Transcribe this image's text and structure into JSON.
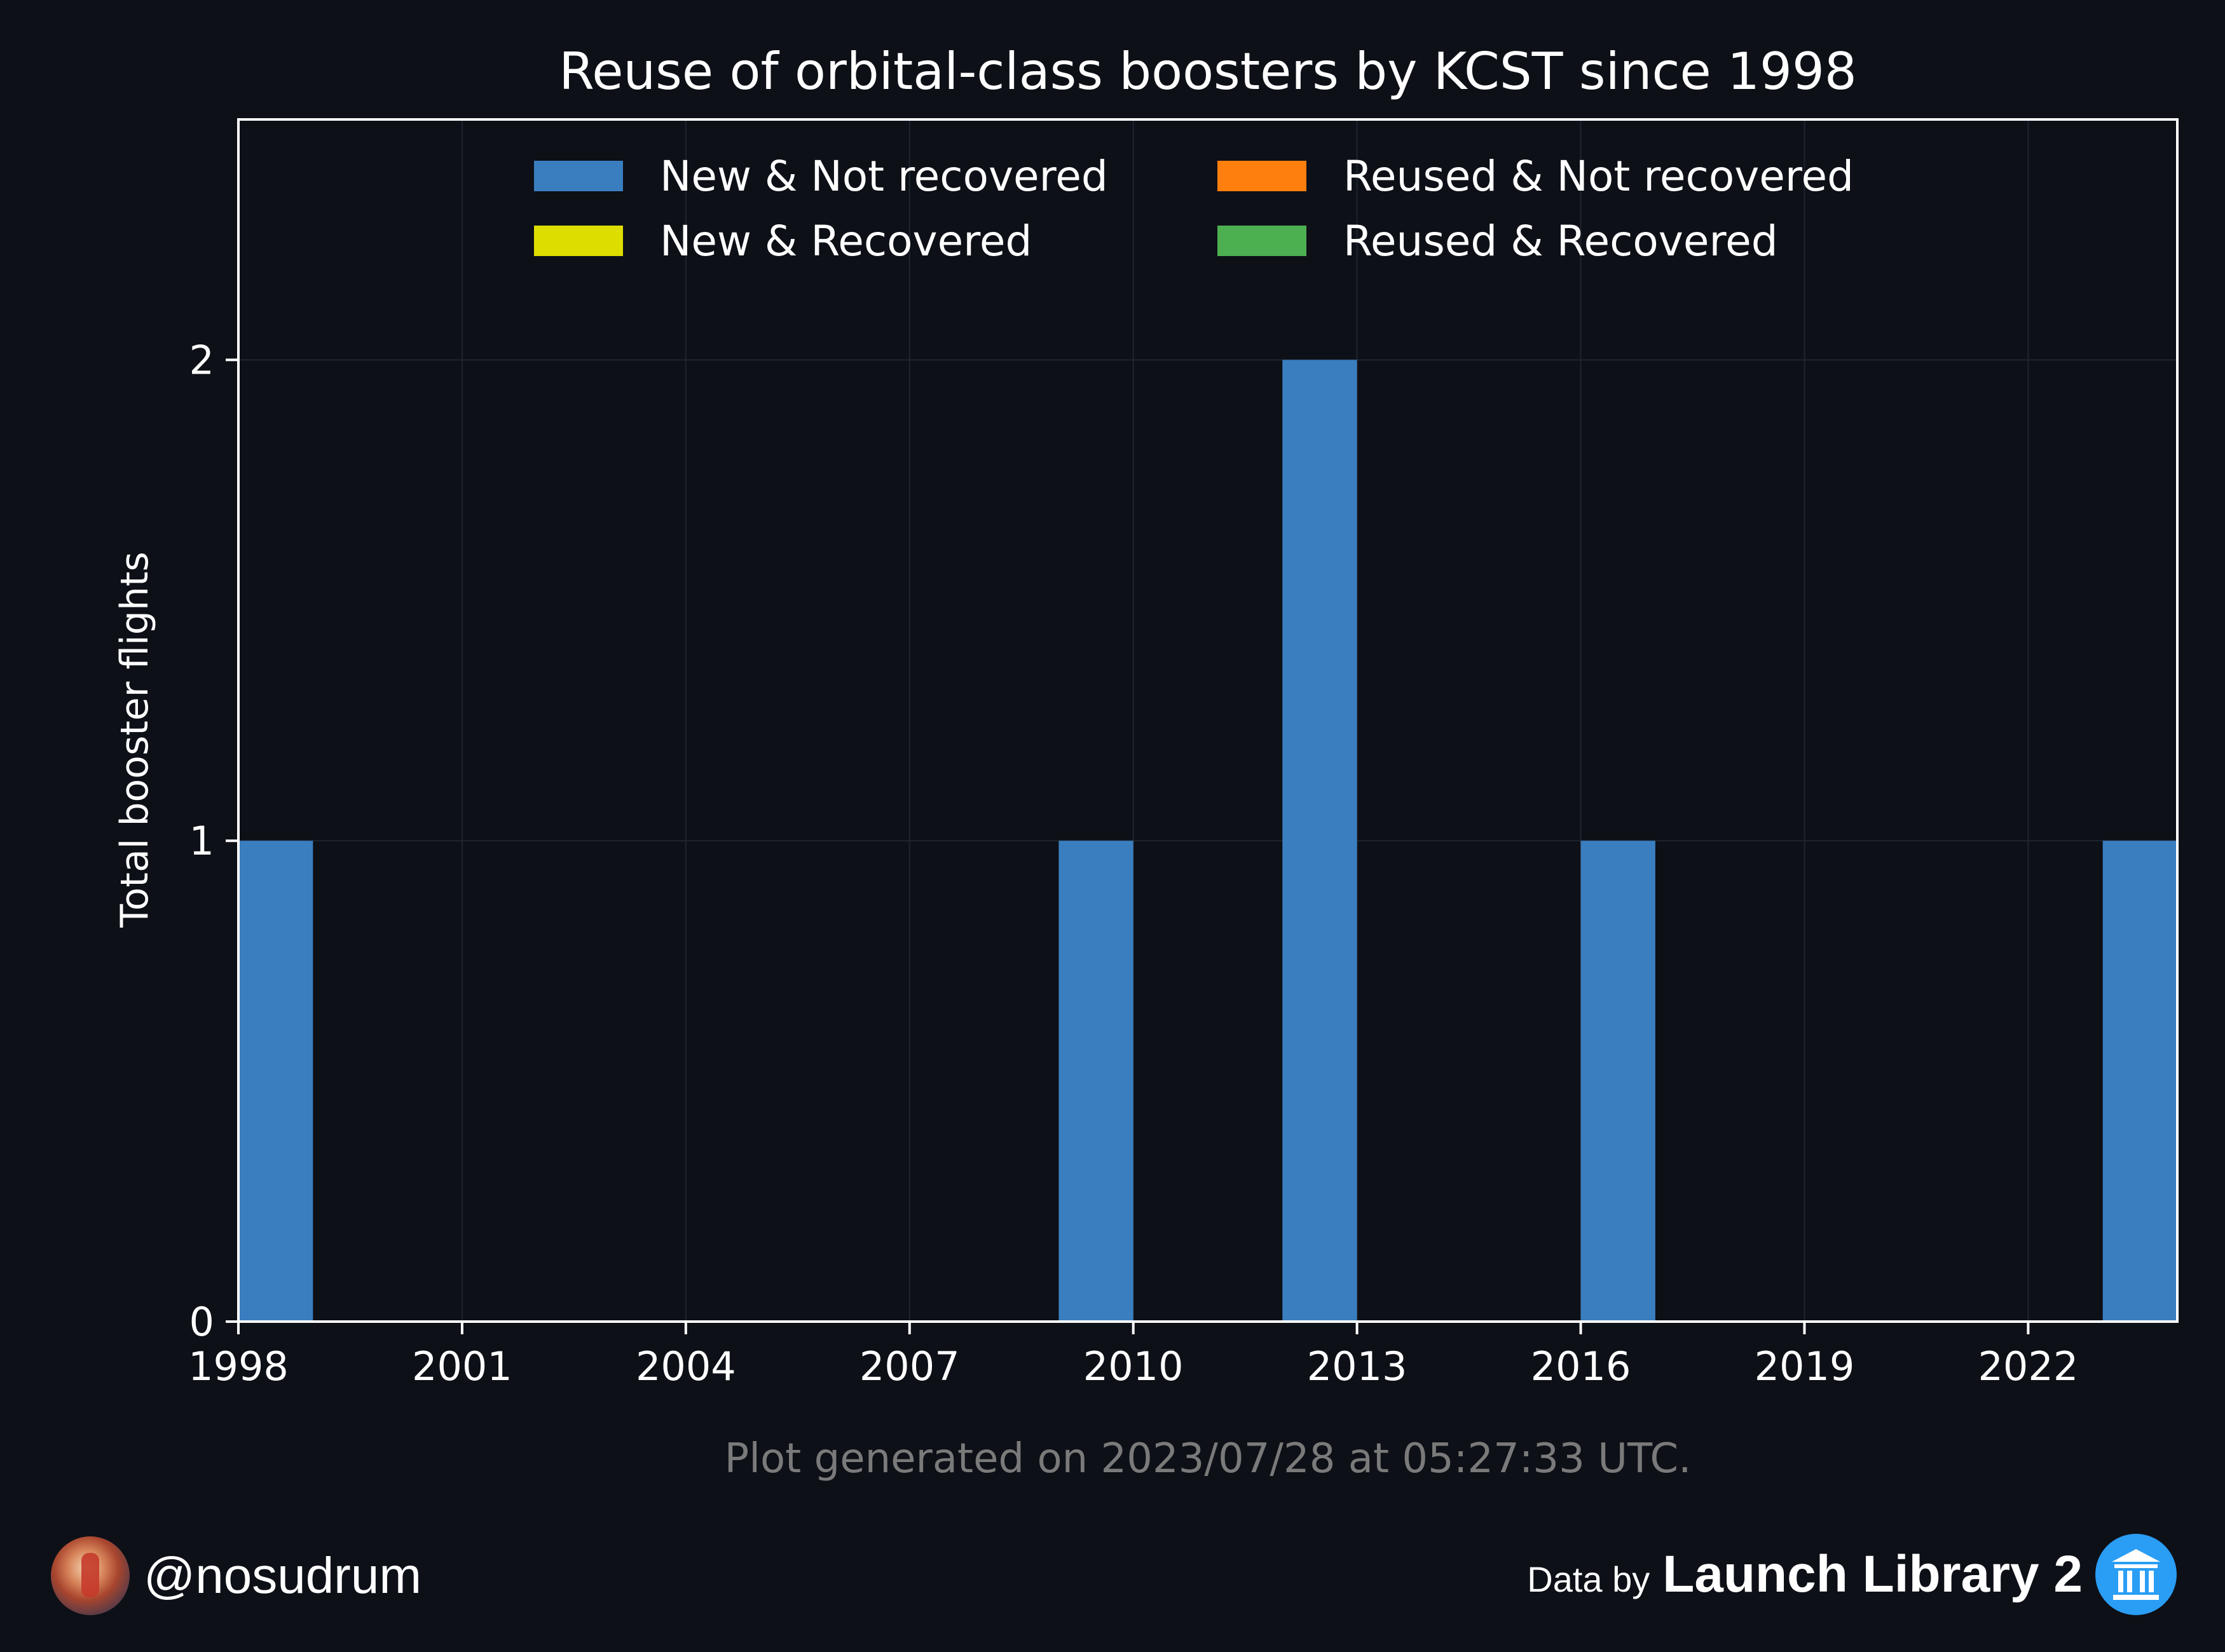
{
  "colors": {
    "background": "#0d1017",
    "axes_edge": "#ffffff",
    "grid": "#1f2430",
    "footnote": "#7a7a7a",
    "logo_blue": "#2a9df4"
  },
  "chart_data": {
    "type": "bar",
    "stacked": true,
    "title": "Reuse of orbital-class boosters by KCST since 1998",
    "xlabel": "",
    "ylabel": "Total booster flights",
    "x_ticks": [
      "1998",
      "2001",
      "2004",
      "2007",
      "2010",
      "2013",
      "2016",
      "2019",
      "2022"
    ],
    "x_tick_values": [
      1998,
      2001,
      2004,
      2007,
      2010,
      2013,
      2016,
      2019,
      2022
    ],
    "y_ticks": [
      "0",
      "1",
      "2"
    ],
    "y_tick_values": [
      0,
      1,
      2
    ],
    "xlim": [
      1998,
      2024
    ],
    "ylim": [
      0,
      2.5
    ],
    "grid": true,
    "legend_position": "top-center",
    "categories": [
      1998,
      2009,
      2012,
      2016,
      2023
    ],
    "series": [
      {
        "name": "New & Not recovered",
        "color": "#3a7ebf",
        "values": [
          1,
          1,
          2,
          1,
          1
        ]
      },
      {
        "name": "New & Recovered",
        "color": "#dddd00",
        "values": [
          0,
          0,
          0,
          0,
          0
        ]
      },
      {
        "name": "Reused & Not recovered",
        "color": "#ff7f0e",
        "values": [
          0,
          0,
          0,
          0,
          0
        ]
      },
      {
        "name": "Reused & Recovered",
        "color": "#4caf50",
        "values": [
          0,
          0,
          0,
          0,
          0
        ]
      }
    ],
    "footnote": "Plot generated on 2023/07/28 at 05:27:33 UTC."
  },
  "footer": {
    "handle": "@nosudrum",
    "data_by": "Data by",
    "source": "Launch Library 2"
  }
}
